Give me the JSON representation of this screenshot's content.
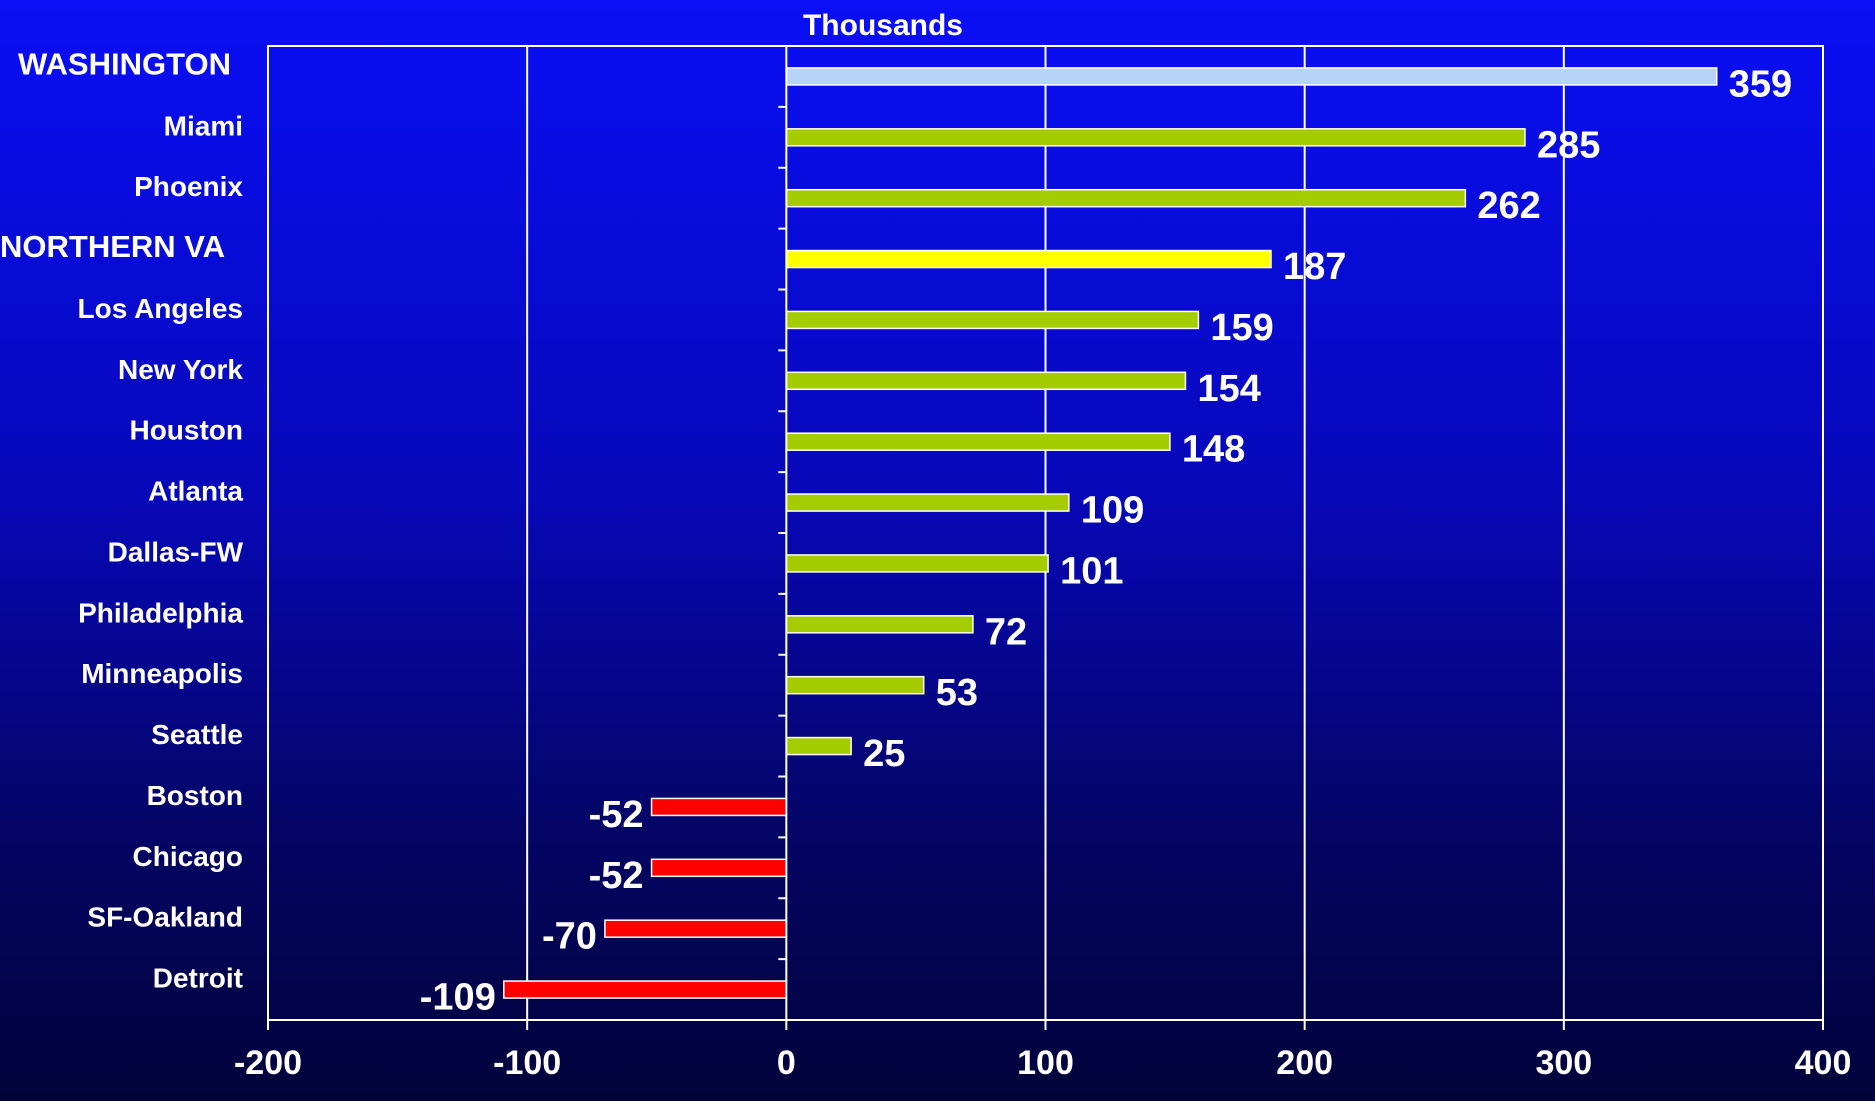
{
  "chart_data": {
    "type": "bar",
    "orientation": "horizontal",
    "unit_label": "Thousands",
    "categories": [
      "WASHINGTON",
      "Miami",
      "Phoenix",
      "NORTHERN VA",
      "Los Angeles",
      "New York",
      "Houston",
      "Atlanta",
      "Dallas-FW",
      "Philadelphia",
      "Minneapolis",
      "Seattle",
      "Boston",
      "Chicago",
      "SF-Oakland",
      "Detroit"
    ],
    "values": [
      359,
      285,
      262,
      187,
      159,
      154,
      148,
      109,
      101,
      72,
      53,
      25,
      -52,
      -52,
      -70,
      -109
    ],
    "xlim": [
      -200,
      400
    ],
    "x_ticks": [
      -200,
      -100,
      0,
      100,
      200,
      300,
      400
    ],
    "grid": "vertical",
    "colors": {
      "washington_bar": "#b7d3f5",
      "positive_bar": "#a4cc00",
      "highlight_bar": "#ffff00",
      "negative_bar": "#ff0000",
      "washington_label": "#9cc3ff",
      "highlight_label": "#ffff00",
      "default_label": "#ffffff"
    }
  }
}
